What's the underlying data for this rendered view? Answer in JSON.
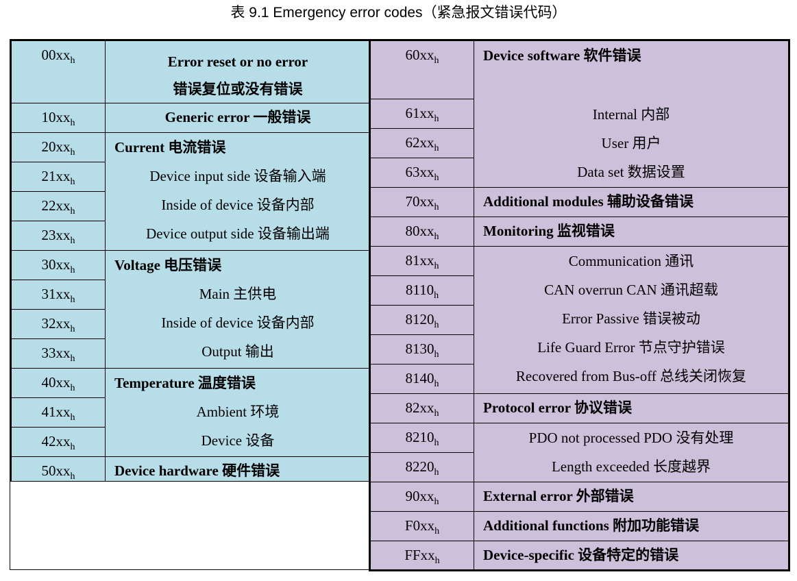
{
  "caption": "表 9.1 Emergency error codes（紧急报文错误代码）",
  "subscript": "h",
  "left": {
    "r00": {
      "code": "00xx",
      "line1": "Error reset or no error",
      "line2": "错误复位或没有错误"
    },
    "r10": {
      "code": "10xx",
      "text": "Generic error 一般错误"
    },
    "current": {
      "codes": [
        "20xx",
        "21xx",
        "22xx",
        "23xx"
      ],
      "heading": "Current  电流错误",
      "items": [
        "Device input side 设备输入端",
        "Inside of device  设备内部",
        "Device output side 设备输出端"
      ]
    },
    "voltage": {
      "codes": [
        "30xx",
        "31xx",
        "32xx",
        "33xx"
      ],
      "heading": "Voltage  电压错误",
      "items": [
        "Main 主供电",
        "Inside of device 设备内部",
        "Output 输出"
      ]
    },
    "temperature": {
      "codes": [
        "40xx",
        "41xx",
        "42xx"
      ],
      "heading": "Temperature  温度错误",
      "items": [
        "Ambient  环境",
        "Device 设备"
      ]
    },
    "r50": {
      "code": "50xx",
      "text": "Device hardware 硬件错误"
    }
  },
  "right": {
    "software": {
      "codes": [
        "60xx",
        "61xx",
        "62xx",
        "63xx"
      ],
      "heading": "Device software 软件错误",
      "items": [
        "Internal 内部",
        "User 用户",
        "Data set 数据设置"
      ]
    },
    "r70": {
      "code": "70xx",
      "text": "Additional modules 辅助设备错误"
    },
    "r80": {
      "code": "80xx",
      "text": "Monitoring 监视错误"
    },
    "comm": {
      "codes": [
        "81xx",
        "8110",
        "8120",
        "8130",
        "8140"
      ],
      "items": [
        "Communication 通讯",
        "CAN overrun CAN 通讯超载",
        "Error Passive 错误被动",
        "Life Guard Error 节点守护错误",
        "Recovered from Bus-off 总线关闭恢复"
      ]
    },
    "r82": {
      "code": "82xx",
      "text": "Protocol error 协议错误"
    },
    "proto": {
      "codes": [
        "8210",
        "8220"
      ],
      "items": [
        "PDO not processed PDO 没有处理",
        "Length exceeded 长度越界"
      ]
    },
    "r90": {
      "code": "90xx",
      "text": "External error 外部错误"
    },
    "rF0": {
      "code": "F0xx",
      "text": "Additional functions 附加功能错误"
    },
    "rFF": {
      "code": "FFxx",
      "text": "Device-specific 设备特定的错误"
    }
  }
}
